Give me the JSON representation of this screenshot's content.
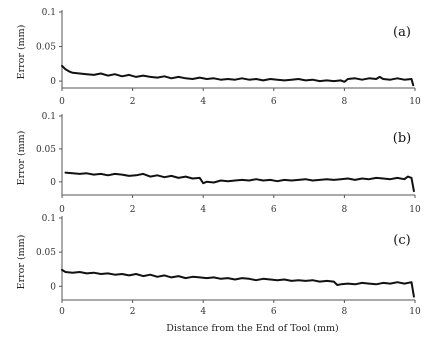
{
  "chart_data": [
    {
      "type": "line",
      "panel_label": "(a)",
      "ylabel": "Error (mm)",
      "xlabel": "",
      "xlim": [
        0,
        10
      ],
      "ylim": [
        -0.01,
        0.1
      ],
      "x_ticks": [
        "0",
        "2",
        "4",
        "6",
        "8",
        "10"
      ],
      "y_ticks": [
        "0",
        "0.05",
        "0.1"
      ],
      "series": [
        {
          "x": [
            0,
            0.1,
            0.2,
            0.3,
            0.5,
            0.7,
            0.9,
            1.1,
            1.3,
            1.5,
            1.7,
            1.9,
            2.1,
            2.3,
            2.5,
            2.7,
            2.9,
            3.1,
            3.3,
            3.5,
            3.7,
            3.9,
            4.1,
            4.3,
            4.5,
            4.7,
            4.9,
            5.1,
            5.3,
            5.5,
            5.7,
            5.9,
            6.1,
            6.3,
            6.5,
            6.7,
            6.9,
            7.1,
            7.3,
            7.5,
            7.7,
            7.9,
            8.0,
            8.1,
            8.3,
            8.5,
            8.7,
            8.9,
            9.0,
            9.1,
            9.3,
            9.5,
            9.7,
            9.9,
            9.95
          ],
          "y": [
            0.022,
            0.017,
            0.014,
            0.012,
            0.011,
            0.01,
            0.009,
            0.011,
            0.008,
            0.01,
            0.007,
            0.009,
            0.006,
            0.008,
            0.006,
            0.005,
            0.007,
            0.004,
            0.006,
            0.004,
            0.003,
            0.005,
            0.003,
            0.004,
            0.002,
            0.003,
            0.002,
            0.004,
            0.002,
            0.003,
            0.001,
            0.003,
            0.002,
            0.001,
            0.002,
            0.003,
            0.001,
            0.002,
            0.0,
            0.001,
            0.0,
            0.001,
            -0.001,
            0.003,
            0.004,
            0.002,
            0.004,
            0.003,
            0.006,
            0.003,
            0.002,
            0.004,
            0.002,
            0.003,
            -0.006
          ]
        }
      ]
    },
    {
      "type": "line",
      "panel_label": "(b)",
      "ylabel": "Error (mm)",
      "xlabel": "",
      "xlim": [
        0,
        10
      ],
      "ylim": [
        -0.02,
        0.1
      ],
      "x_ticks": [
        "0",
        "2",
        "4",
        "6",
        "8",
        "10"
      ],
      "y_ticks": [
        "0",
        "0.05",
        "0.1"
      ],
      "series": [
        {
          "x": [
            0.1,
            0.3,
            0.5,
            0.7,
            0.9,
            1.1,
            1.3,
            1.5,
            1.7,
            1.9,
            2.1,
            2.3,
            2.5,
            2.7,
            2.9,
            3.1,
            3.3,
            3.5,
            3.7,
            3.9,
            4.0,
            4.1,
            4.3,
            4.5,
            4.7,
            4.9,
            5.1,
            5.3,
            5.5,
            5.7,
            5.9,
            6.1,
            6.3,
            6.5,
            6.7,
            6.9,
            7.1,
            7.3,
            7.5,
            7.7,
            7.9,
            8.1,
            8.3,
            8.5,
            8.7,
            8.9,
            9.1,
            9.3,
            9.5,
            9.7,
            9.8,
            9.9,
            9.97
          ],
          "y": [
            0.014,
            0.013,
            0.012,
            0.013,
            0.011,
            0.012,
            0.01,
            0.012,
            0.011,
            0.009,
            0.01,
            0.012,
            0.008,
            0.01,
            0.007,
            0.009,
            0.006,
            0.008,
            0.005,
            0.006,
            -0.002,
            0.0,
            -0.001,
            0.002,
            0.001,
            0.002,
            0.003,
            0.002,
            0.004,
            0.002,
            0.003,
            0.001,
            0.003,
            0.002,
            0.003,
            0.004,
            0.002,
            0.003,
            0.004,
            0.003,
            0.004,
            0.005,
            0.003,
            0.005,
            0.004,
            0.006,
            0.005,
            0.004,
            0.006,
            0.004,
            0.008,
            0.006,
            -0.014
          ]
        }
      ]
    },
    {
      "type": "line",
      "panel_label": "(c)",
      "ylabel": "Error (mm)",
      "xlabel": "Distance from the End of Tool (mm)",
      "xlim": [
        0,
        10
      ],
      "ylim": [
        -0.02,
        0.1
      ],
      "x_ticks": [
        "0",
        "2",
        "4",
        "6",
        "8",
        "10"
      ],
      "y_ticks": [
        "0",
        "0.05",
        "0.1"
      ],
      "series": [
        {
          "x": [
            0,
            0.1,
            0.3,
            0.5,
            0.7,
            0.9,
            1.1,
            1.3,
            1.5,
            1.7,
            1.9,
            2.1,
            2.3,
            2.5,
            2.7,
            2.9,
            3.1,
            3.3,
            3.5,
            3.7,
            3.9,
            4.1,
            4.3,
            4.5,
            4.7,
            4.9,
            5.1,
            5.3,
            5.5,
            5.7,
            5.9,
            6.1,
            6.3,
            6.5,
            6.7,
            6.9,
            7.1,
            7.3,
            7.5,
            7.7,
            7.8,
            7.9,
            8.1,
            8.3,
            8.5,
            8.7,
            8.9,
            9.1,
            9.3,
            9.5,
            9.7,
            9.9,
            9.97
          ],
          "y": [
            0.024,
            0.021,
            0.02,
            0.021,
            0.019,
            0.02,
            0.018,
            0.019,
            0.017,
            0.018,
            0.016,
            0.018,
            0.015,
            0.017,
            0.014,
            0.016,
            0.013,
            0.015,
            0.012,
            0.014,
            0.013,
            0.012,
            0.013,
            0.011,
            0.012,
            0.01,
            0.012,
            0.011,
            0.009,
            0.011,
            0.01,
            0.009,
            0.01,
            0.008,
            0.009,
            0.008,
            0.009,
            0.007,
            0.008,
            0.007,
            0.002,
            0.003,
            0.004,
            0.003,
            0.005,
            0.004,
            0.003,
            0.005,
            0.004,
            0.006,
            0.004,
            0.006,
            -0.015
          ]
        }
      ]
    }
  ]
}
